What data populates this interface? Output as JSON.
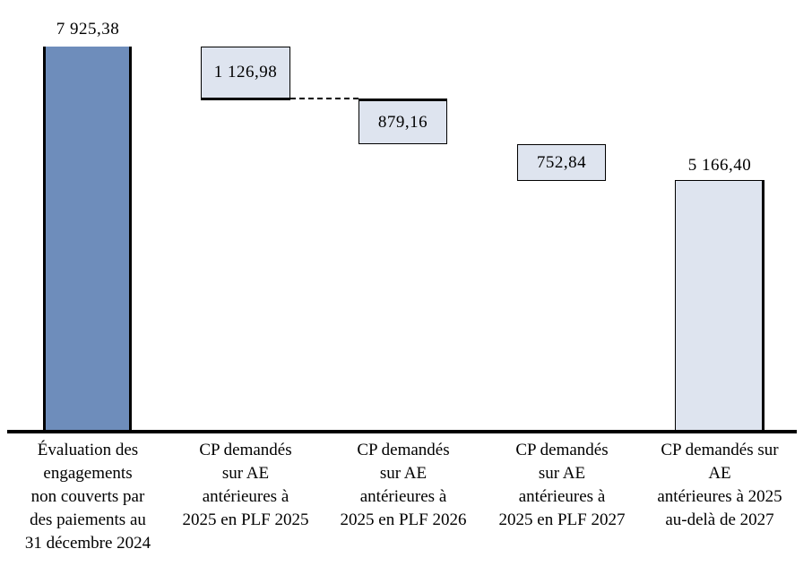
{
  "chart_data": {
    "type": "bar",
    "subtype": "waterfall",
    "title": "",
    "xlabel": "",
    "ylabel": "",
    "categories": [
      "Évaluation des\nengagements\nnon couverts par\ndes paiements au\n31 décembre 2024",
      "CP demandés\nsur AE\nantérieures à\n2025 en PLF 2025",
      "CP demandés\nsur AE\nantérieures à\n2025 en PLF 2026",
      "CP demandés\nsur AE\nantérieures à\n2025 en PLF 2027",
      "CP demandés sur\nAE\nantérieures à 2025\nau-delà de 2027"
    ],
    "values": [
      7925.38,
      1126.98,
      879.16,
      752.84,
      5166.4
    ],
    "segment_start": [
      0,
      6798.4,
      5919.24,
      5166.4,
      0
    ],
    "segment_end": [
      7925.38,
      7925.38,
      6798.4,
      5919.24,
      5166.4
    ],
    "value_labels": [
      "7 925,38",
      "1 126,98",
      "879,16",
      "752,84",
      "5 166,40"
    ],
    "value_label_position": [
      "above",
      "inside",
      "inside",
      "inside",
      "above"
    ],
    "ylim": [
      0,
      7925.38
    ],
    "grid": false,
    "legend": false,
    "axis_line": "bottom",
    "connector": {
      "between": [
        "column-2",
        "column-3"
      ],
      "style": "dashed"
    },
    "colors": {
      "opening_bar": "#6e8dbb",
      "flow_boxes": "#dee4ef",
      "border": "#000000",
      "axis": "#000000",
      "text": "#000000"
    }
  }
}
